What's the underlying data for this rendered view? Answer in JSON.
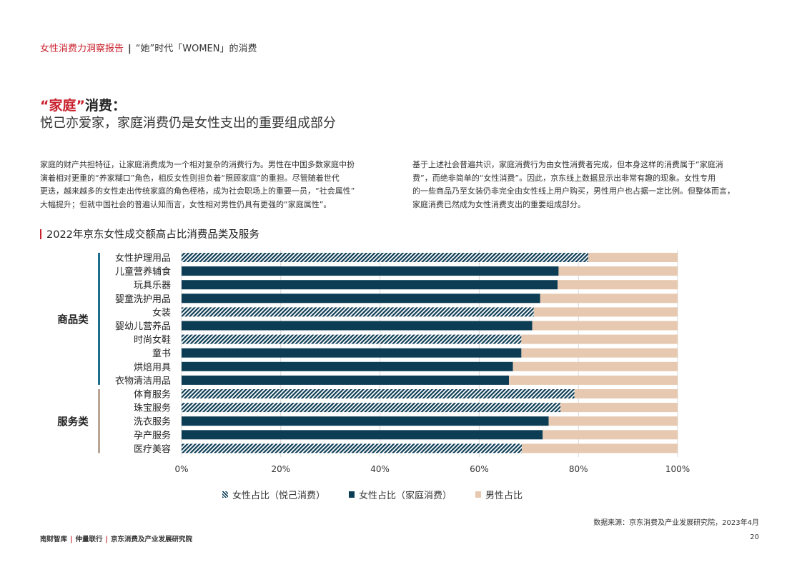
{
  "header": {
    "report_name": "女性消费力洞察报告",
    "separator": "|",
    "subtitle": "“她”时代「WOMEN」的消费"
  },
  "section": {
    "title_highlight": "“家庭”",
    "title_rest": "消费：",
    "subtitle": "悦己亦爱家，家庭消费仍是女性支出的重要组成部分"
  },
  "paragraphs": {
    "left": [
      "家庭的财产共担特征，让家庭消费成为一个相对复杂的消费行为。男性在中国多数家庭中扮",
      "演着相对更重的“养家糊口”角色，相反女性则担负着“照顾家庭”的重担。尽管随着世代",
      "更迭，越来越多的女性走出传统家庭的角色桎梏，成为社会职场上的重要一员，“社会属性”",
      "大幅提升；但就中国社会的普遍认知而言，女性相对男性仍具有更强的“家庭属性”。"
    ],
    "right": [
      "基于上述社会普遍共识，家庭消费行为由女性消费者完成，但本身这样的消费属于“家庭消",
      "费”，而绝非简单的“女性消费”。因此，京东线上数据显示出非常有趣的现象。女性专用",
      "的一些商品乃至女装仍非完全由女性线上用户购买，男性用户也占据一定比例。但整体而言，",
      "家庭消费已然成为女性消费支出的重要组成部分。"
    ]
  },
  "chart_title": "2022年京东女性成交额高占比消费品类及服务",
  "source": "数据来源：京东消费及产业发展研究院，2023年4月",
  "footer": {
    "org1": "南财智库",
    "org2": "仲量联行",
    "org3": "京东消费及产业发展研究院",
    "sep": "|"
  },
  "page_number": "20",
  "colors": {
    "self_pleasing": "#6e8e9c",
    "family": "#0c3d55",
    "male": "#e6c9b0",
    "accent_red": "#c8202c",
    "goods_group": "#1b6f8c",
    "services_group": "#b8a596"
  },
  "chart_data": {
    "type": "bar",
    "orientation": "horizontal",
    "stacked": true,
    "categories": [
      "女性护理用品",
      "儿童营养辅食",
      "玩具乐器",
      "婴童洗护用品",
      "女装",
      "婴幼儿营养品",
      "时尚女鞋",
      "童书",
      "烘焙用具",
      "衣物清洁用品",
      "体育服务",
      "珠宝服务",
      "洗衣服务",
      "孕产服务",
      "医疗美容"
    ],
    "groups": [
      {
        "name": "商品类",
        "categories": [
          "女性护理用品",
          "儿童营养辅食",
          "玩具乐器",
          "婴童洗护用品",
          "女装",
          "婴幼儿营养品",
          "时尚女鞋",
          "童书",
          "烘焙用具",
          "衣物清洁用品"
        ]
      },
      {
        "name": "服务类",
        "categories": [
          "体育服务",
          "珠宝服务",
          "洗衣服务",
          "孕产服务",
          "医疗美容"
        ]
      }
    ],
    "female_share": [
      82,
      76,
      75.8,
      72.3,
      71,
      70.7,
      68.5,
      68.5,
      66.8,
      66,
      79.2,
      76.4,
      74,
      72.8,
      68.6
    ],
    "female_type": [
      "self_pleasing",
      "family",
      "family",
      "family",
      "self_pleasing",
      "family",
      "self_pleasing",
      "family",
      "family",
      "family",
      "self_pleasing",
      "self_pleasing",
      "family",
      "family",
      "self_pleasing"
    ],
    "series": [
      {
        "name": "女性占比（悦己消费）",
        "key": "self_pleasing"
      },
      {
        "name": "女性占比（家庭消费）",
        "key": "family"
      },
      {
        "name": "男性占比",
        "key": "male"
      }
    ],
    "x_ticks": [
      "0%",
      "20%",
      "40%",
      "60%",
      "80%",
      "100%"
    ],
    "xlim": [
      0,
      100
    ],
    "legend_position": "bottom",
    "grid": true
  }
}
